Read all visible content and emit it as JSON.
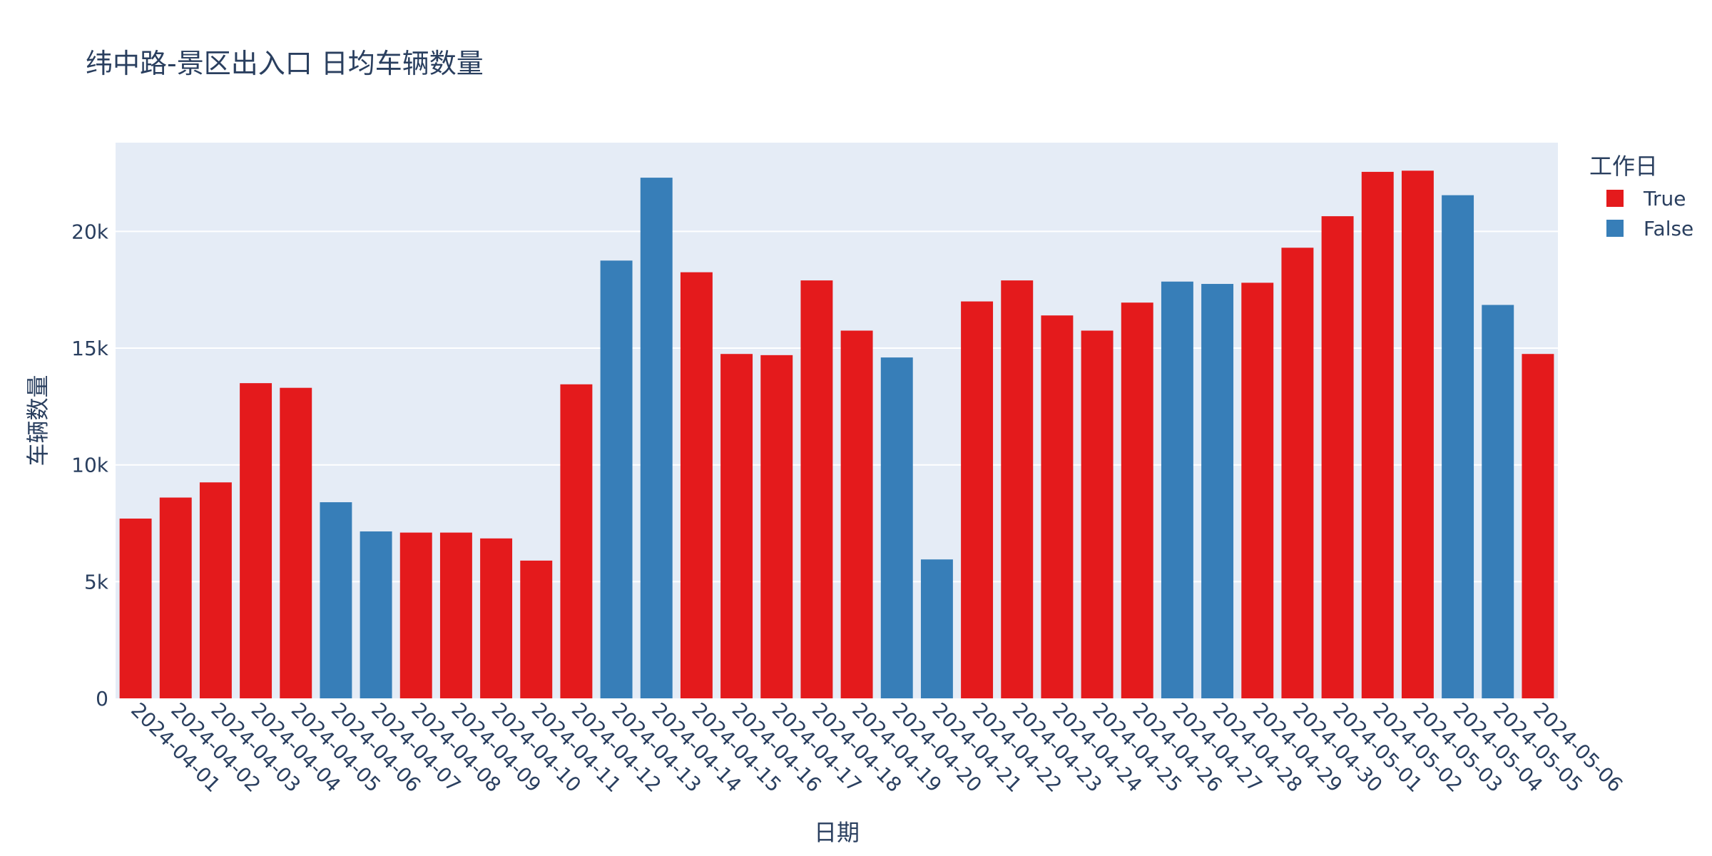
{
  "chart_data": {
    "type": "bar",
    "title": "纬中路-景区出入口 日均车辆数量",
    "xlabel": "日期",
    "ylabel": "车辆数量",
    "ylim": [
      0,
      23800
    ],
    "yticks": [
      0,
      5000,
      10000,
      15000,
      20000
    ],
    "ytick_labels": [
      "0",
      "5k",
      "10k",
      "15k",
      "20k"
    ],
    "grid": true,
    "legend": {
      "title": "工作日",
      "placement": "top-right",
      "entries": [
        {
          "label": "True",
          "color": "#e41a1c"
        },
        {
          "label": "False",
          "color": "#377eb8"
        }
      ]
    },
    "categories": [
      "2024-04-01",
      "2024-04-02",
      "2024-04-03",
      "2024-04-04",
      "2024-04-05",
      "2024-04-06",
      "2024-04-07",
      "2024-04-08",
      "2024-04-09",
      "2024-04-10",
      "2024-04-11",
      "2024-04-12",
      "2024-04-13",
      "2024-04-14",
      "2024-04-15",
      "2024-04-16",
      "2024-04-17",
      "2024-04-18",
      "2024-04-19",
      "2024-04-20",
      "2024-04-21",
      "2024-04-22",
      "2024-04-23",
      "2024-04-24",
      "2024-04-25",
      "2024-04-26",
      "2024-04-27",
      "2024-04-28",
      "2024-04-29",
      "2024-04-30",
      "2024-05-01",
      "2024-05-02",
      "2024-05-03",
      "2024-05-04",
      "2024-05-05",
      "2024-05-06"
    ],
    "values": [
      7700,
      8600,
      9250,
      13500,
      13300,
      8400,
      7150,
      7100,
      7100,
      6850,
      5900,
      13450,
      18750,
      22300,
      18250,
      14750,
      14700,
      17900,
      15750,
      14600,
      5950,
      17000,
      17900,
      16400,
      15750,
      16950,
      17850,
      17750,
      17800,
      19300,
      20650,
      22550,
      22600,
      21550,
      16850,
      14750
    ],
    "workday": [
      true,
      true,
      true,
      true,
      true,
      false,
      false,
      true,
      true,
      true,
      true,
      true,
      false,
      false,
      true,
      true,
      true,
      true,
      true,
      false,
      false,
      true,
      true,
      true,
      true,
      true,
      false,
      false,
      true,
      true,
      true,
      true,
      true,
      false,
      false,
      true
    ]
  },
  "colors": {
    "true": "#e41a1c",
    "false": "#377eb8",
    "plot_bg": "#e5ecf6",
    "grid": "#ffffff",
    "text": "#2a3f5f"
  }
}
